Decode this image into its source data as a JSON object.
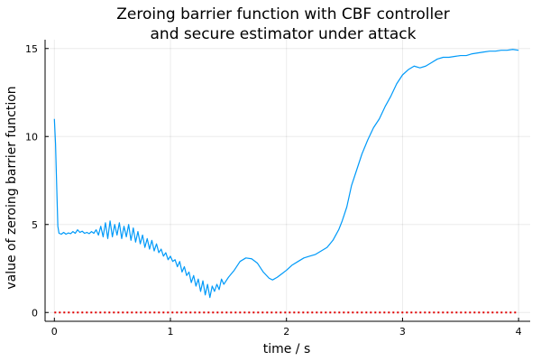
{
  "chart_data": {
    "type": "line",
    "title": [
      "Zeroing barrier function with CBF controller",
      "and secure estimator under attack"
    ],
    "xlabel": "time / s",
    "ylabel": "value of zeroing barrier function",
    "xlim": [
      -0.08,
      4.1
    ],
    "ylim": [
      -0.5,
      15.5
    ],
    "xticks": [
      0,
      1,
      2,
      3,
      4
    ],
    "yticks": [
      0,
      5,
      10,
      15
    ],
    "grid": true,
    "legend": "none",
    "series": [
      {
        "color": "#009af9",
        "style": "solid",
        "points": [
          [
            0.0,
            11.0
          ],
          [
            0.01,
            9.6
          ],
          [
            0.02,
            7.2
          ],
          [
            0.03,
            4.9
          ],
          [
            0.04,
            4.5
          ],
          [
            0.06,
            4.45
          ],
          [
            0.08,
            4.55
          ],
          [
            0.1,
            4.45
          ],
          [
            0.12,
            4.52
          ],
          [
            0.14,
            4.48
          ],
          [
            0.16,
            4.6
          ],
          [
            0.18,
            4.5
          ],
          [
            0.2,
            4.7
          ],
          [
            0.22,
            4.55
          ],
          [
            0.24,
            4.62
          ],
          [
            0.26,
            4.5
          ],
          [
            0.28,
            4.55
          ],
          [
            0.3,
            4.48
          ],
          [
            0.32,
            4.6
          ],
          [
            0.34,
            4.5
          ],
          [
            0.36,
            4.7
          ],
          [
            0.38,
            4.4
          ],
          [
            0.4,
            4.9
          ],
          [
            0.42,
            4.3
          ],
          [
            0.44,
            5.1
          ],
          [
            0.46,
            4.2
          ],
          [
            0.48,
            5.2
          ],
          [
            0.5,
            4.3
          ],
          [
            0.52,
            5.0
          ],
          [
            0.54,
            4.4
          ],
          [
            0.56,
            5.1
          ],
          [
            0.58,
            4.2
          ],
          [
            0.6,
            4.9
          ],
          [
            0.62,
            4.3
          ],
          [
            0.64,
            5.0
          ],
          [
            0.66,
            4.1
          ],
          [
            0.68,
            4.8
          ],
          [
            0.7,
            4.0
          ],
          [
            0.72,
            4.6
          ],
          [
            0.74,
            3.9
          ],
          [
            0.76,
            4.4
          ],
          [
            0.78,
            3.7
          ],
          [
            0.8,
            4.2
          ],
          [
            0.82,
            3.6
          ],
          [
            0.84,
            4.1
          ],
          [
            0.86,
            3.5
          ],
          [
            0.88,
            3.9
          ],
          [
            0.9,
            3.4
          ],
          [
            0.92,
            3.6
          ],
          [
            0.94,
            3.2
          ],
          [
            0.96,
            3.4
          ],
          [
            0.98,
            3.0
          ],
          [
            1.0,
            3.2
          ],
          [
            1.02,
            2.9
          ],
          [
            1.04,
            3.0
          ],
          [
            1.06,
            2.6
          ],
          [
            1.08,
            2.9
          ],
          [
            1.1,
            2.3
          ],
          [
            1.12,
            2.6
          ],
          [
            1.14,
            2.1
          ],
          [
            1.16,
            2.3
          ],
          [
            1.18,
            1.7
          ],
          [
            1.2,
            2.1
          ],
          [
            1.22,
            1.5
          ],
          [
            1.24,
            1.9
          ],
          [
            1.26,
            1.2
          ],
          [
            1.28,
            1.8
          ],
          [
            1.3,
            1.0
          ],
          [
            1.32,
            1.6
          ],
          [
            1.34,
            0.85
          ],
          [
            1.36,
            1.5
          ],
          [
            1.38,
            1.2
          ],
          [
            1.4,
            1.6
          ],
          [
            1.42,
            1.3
          ],
          [
            1.44,
            1.9
          ],
          [
            1.46,
            1.6
          ],
          [
            1.5,
            2.0
          ],
          [
            1.55,
            2.4
          ],
          [
            1.6,
            2.9
          ],
          [
            1.65,
            3.1
          ],
          [
            1.7,
            3.05
          ],
          [
            1.75,
            2.8
          ],
          [
            1.8,
            2.3
          ],
          [
            1.85,
            1.95
          ],
          [
            1.88,
            1.85
          ],
          [
            1.92,
            2.0
          ],
          [
            1.96,
            2.2
          ],
          [
            2.0,
            2.4
          ],
          [
            2.05,
            2.7
          ],
          [
            2.1,
            2.9
          ],
          [
            2.15,
            3.1
          ],
          [
            2.2,
            3.2
          ],
          [
            2.25,
            3.3
          ],
          [
            2.3,
            3.5
          ],
          [
            2.35,
            3.7
          ],
          [
            2.4,
            4.1
          ],
          [
            2.45,
            4.7
          ],
          [
            2.48,
            5.2
          ],
          [
            2.52,
            6.0
          ],
          [
            2.56,
            7.2
          ],
          [
            2.6,
            8.0
          ],
          [
            2.65,
            9.0
          ],
          [
            2.7,
            9.8
          ],
          [
            2.75,
            10.5
          ],
          [
            2.8,
            11.0
          ],
          [
            2.85,
            11.7
          ],
          [
            2.9,
            12.3
          ],
          [
            2.95,
            13.0
          ],
          [
            3.0,
            13.5
          ],
          [
            3.05,
            13.8
          ],
          [
            3.1,
            14.0
          ],
          [
            3.15,
            13.9
          ],
          [
            3.2,
            14.0
          ],
          [
            3.25,
            14.2
          ],
          [
            3.3,
            14.4
          ],
          [
            3.35,
            14.5
          ],
          [
            3.4,
            14.5
          ],
          [
            3.45,
            14.55
          ],
          [
            3.5,
            14.6
          ],
          [
            3.55,
            14.6
          ],
          [
            3.6,
            14.7
          ],
          [
            3.65,
            14.75
          ],
          [
            3.7,
            14.8
          ],
          [
            3.75,
            14.85
          ],
          [
            3.8,
            14.85
          ],
          [
            3.85,
            14.9
          ],
          [
            3.9,
            14.9
          ],
          [
            3.95,
            14.95
          ],
          [
            4.0,
            14.9
          ]
        ]
      },
      {
        "color": "#e20000",
        "style": "dotted",
        "points": [
          [
            0.0,
            0.0
          ],
          [
            4.0,
            0.0
          ]
        ]
      }
    ]
  }
}
